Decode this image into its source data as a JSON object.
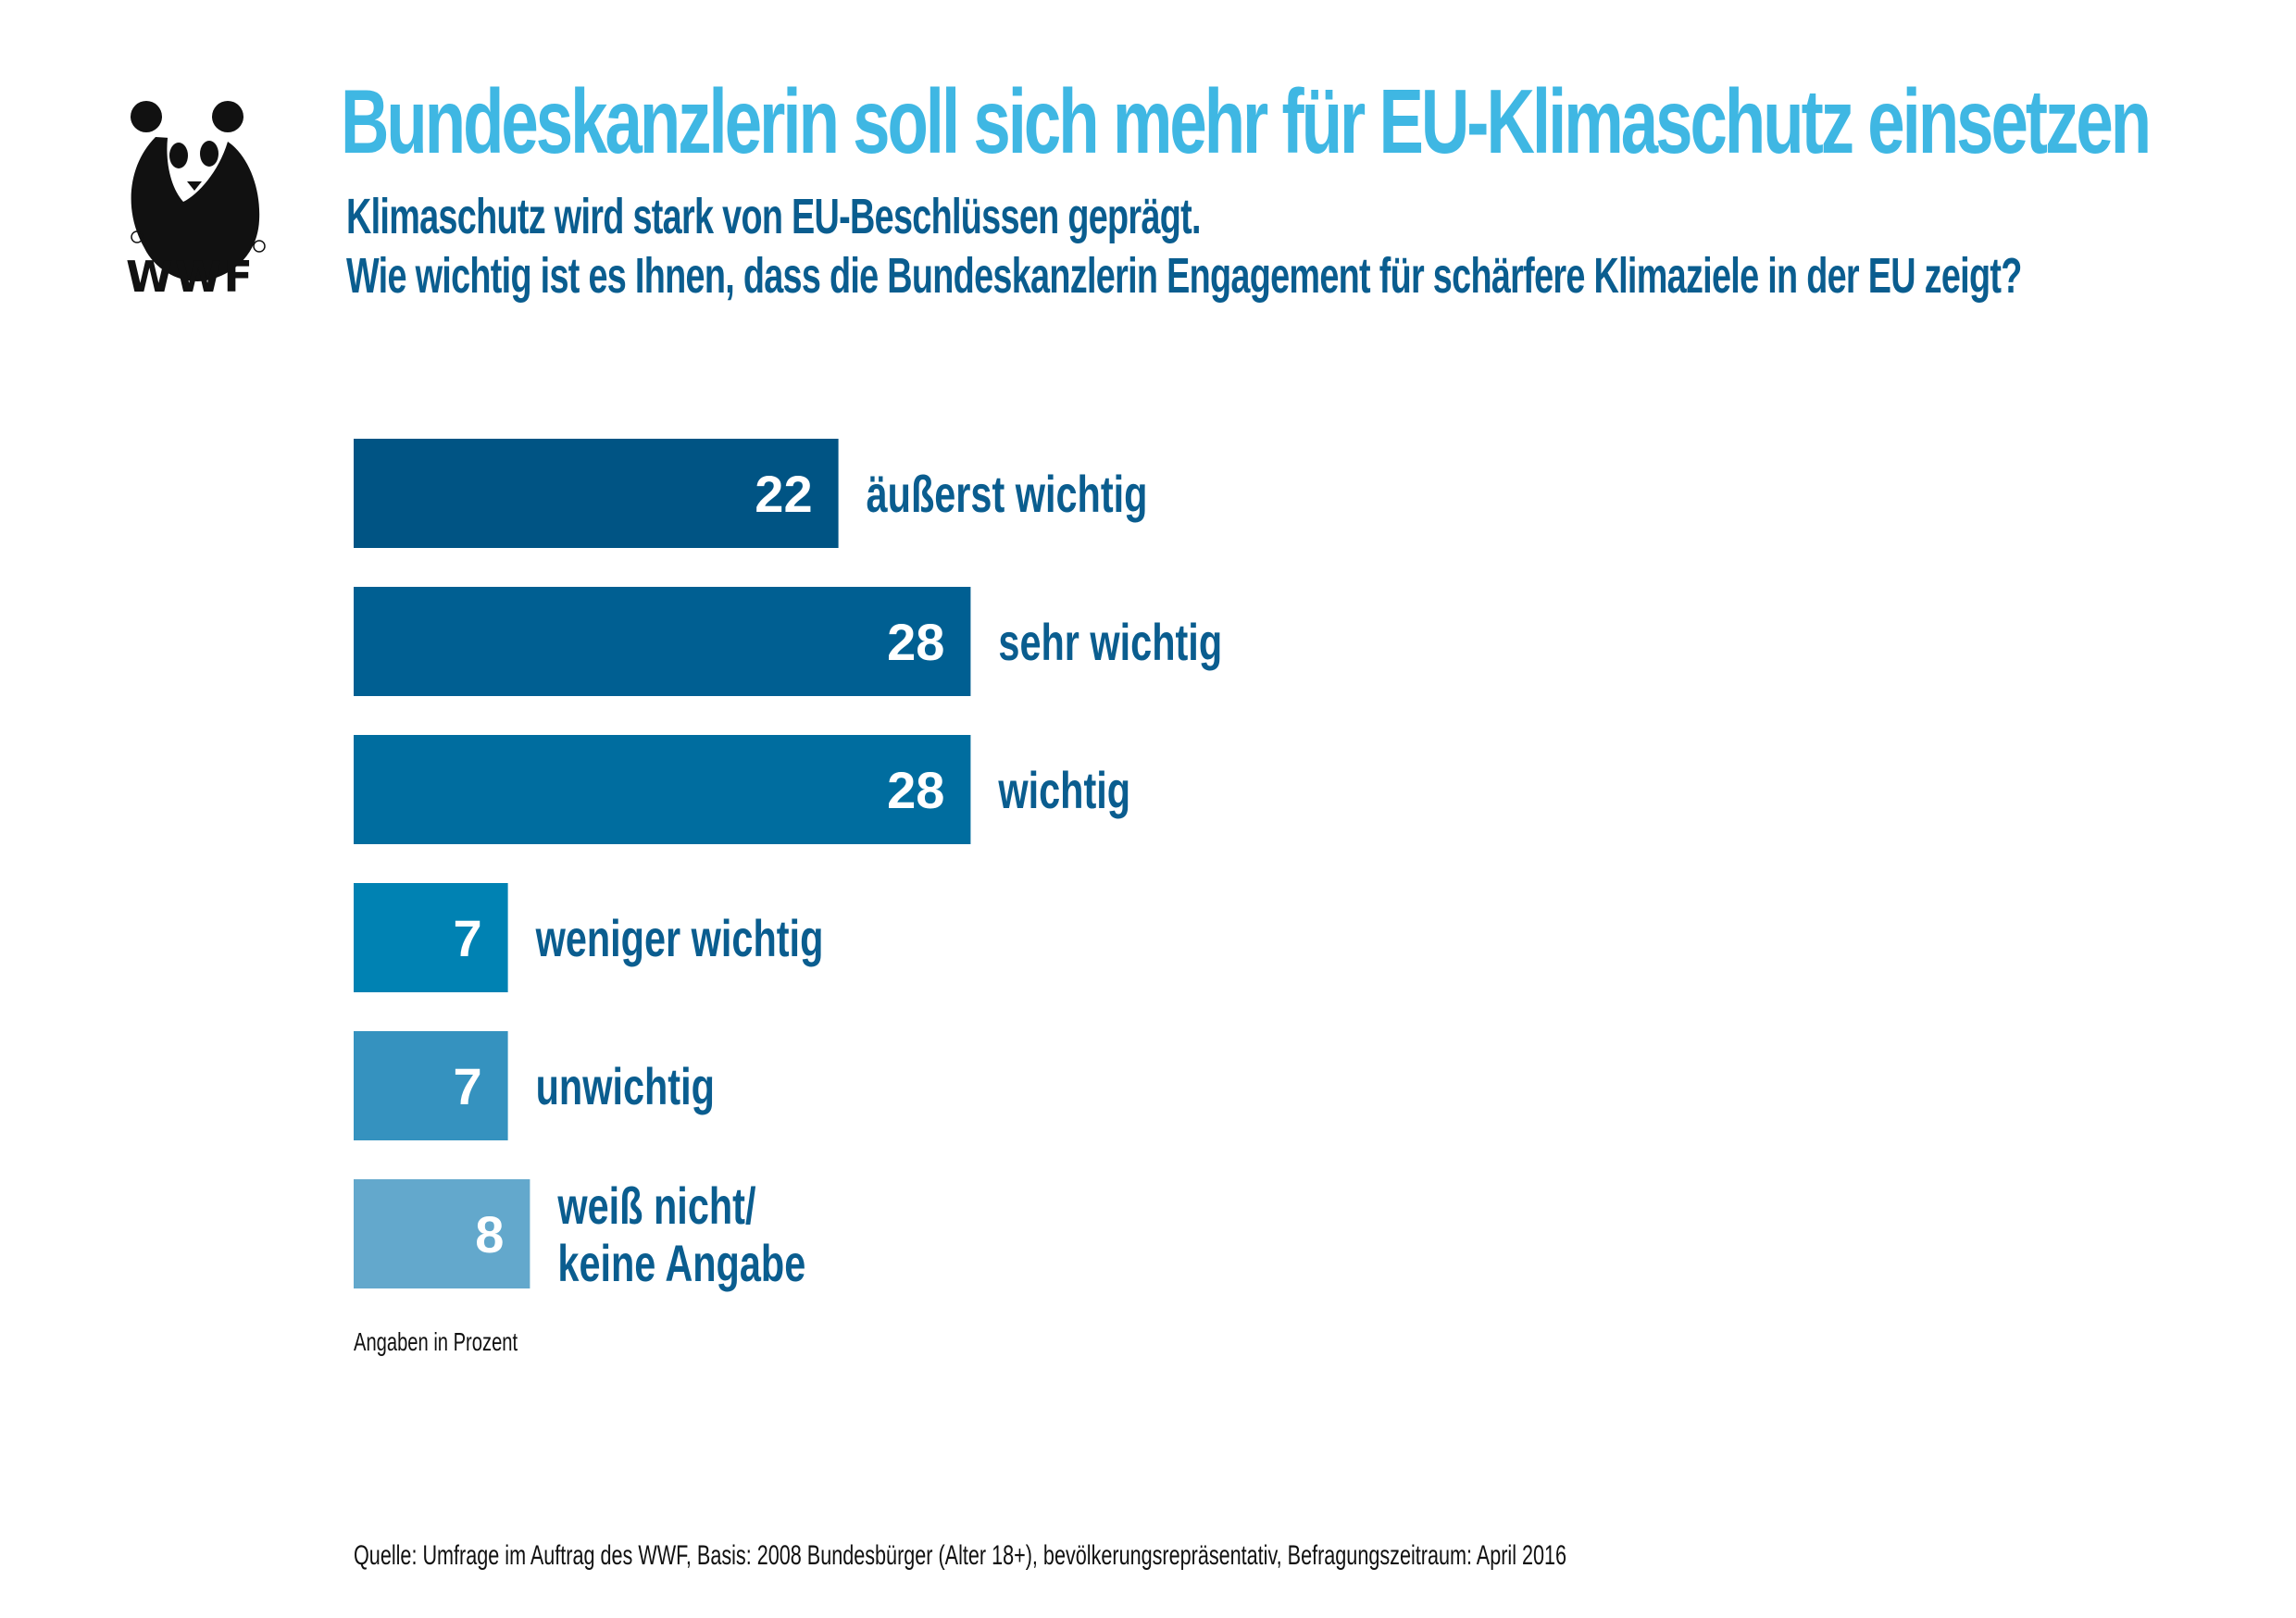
{
  "brand": {
    "logo_text": "WWF",
    "colors": {
      "title": "#3fb7e3",
      "text": "#0a5d8f"
    }
  },
  "header": {
    "title": "Bundeskanzlerin soll sich mehr für EU-Klimaschutz einsetzen",
    "subtitle_line1": "Klimaschutz wird stark von EU-Beschlüssen geprägt.",
    "subtitle_line2": "Wie wichtig ist es Ihnen, dass die Bundeskanzlerin Engagement für schärfere Klimaziele in der EU zeigt?"
  },
  "chart_data": {
    "type": "bar",
    "orientation": "horizontal",
    "categories": [
      "äußerst wichtig",
      "sehr wichtig",
      "wichtig",
      "weniger wichtig",
      "unwichtig",
      "weiß nicht/\nkeine Angabe"
    ],
    "values": [
      22,
      28,
      28,
      7,
      7,
      8
    ],
    "colors": [
      "#005484",
      "#005f92",
      "#006d9f",
      "#0082b3",
      "#3592bf",
      "#63a8cc"
    ],
    "title": "Bundeskanzlerin soll sich mehr für EU-Klimaschutz einsetzen",
    "xlabel": "",
    "ylabel": "",
    "unit_note": "Angaben in Prozent",
    "grid": false,
    "legend": "none"
  },
  "footer": {
    "note": "Angaben in Prozent",
    "source": "Quelle: Umfrage im Auftrag des WWF, Basis: 2008 Bundesbürger (Alter 18+), bevölkerungsrepräsentativ, Befragungszeitraum: April 2016"
  }
}
